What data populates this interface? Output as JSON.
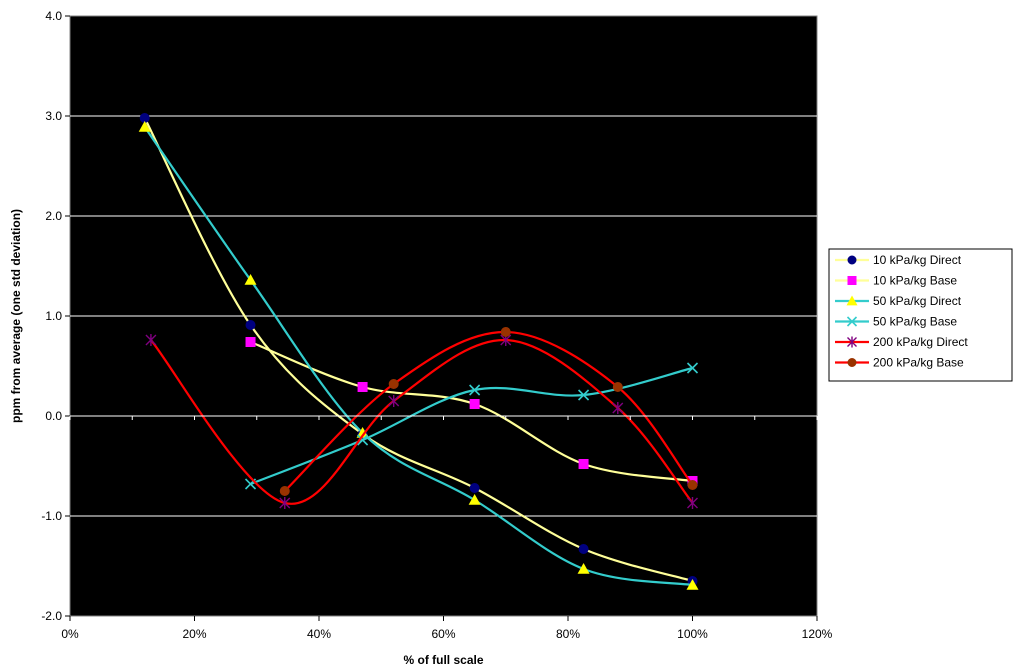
{
  "chart_data": {
    "type": "line",
    "title": "",
    "xlabel": "% of full scale",
    "ylabel": "ppm from average (one std deviation)",
    "xlim": [
      0,
      1.2
    ],
    "ylim": [
      -2.0,
      4.0
    ],
    "x_ticks": [
      {
        "value": 0.0,
        "label": "0%"
      },
      {
        "value": 0.2,
        "label": "20%"
      },
      {
        "value": 0.4,
        "label": "40%"
      },
      {
        "value": 0.6,
        "label": "60%"
      },
      {
        "value": 0.8,
        "label": "80%"
      },
      {
        "value": 1.0,
        "label": "100%"
      },
      {
        "value": 1.2,
        "label": "120%"
      }
    ],
    "y_ticks": [
      {
        "value": -2.0,
        "label": "-2.0"
      },
      {
        "value": -1.0,
        "label": "-1.0"
      },
      {
        "value": 0.0,
        "label": "0.0"
      },
      {
        "value": 1.0,
        "label": "1.0"
      },
      {
        "value": 2.0,
        "label": "2.0"
      },
      {
        "value": 3.0,
        "label": "3.0"
      },
      {
        "value": 4.0,
        "label": "4.0"
      }
    ],
    "grid": "horizontal",
    "plot_background": "#000000",
    "legend_position": "right",
    "series": [
      {
        "name": "10 kPa/kg Direct",
        "line_color": "#FFFF99",
        "marker": "circle",
        "marker_color": "#000080",
        "points": [
          [
            0.12,
            2.98
          ],
          [
            0.29,
            0.91
          ],
          [
            0.47,
            -0.18
          ],
          [
            0.65,
            -0.72
          ],
          [
            0.825,
            -1.33
          ],
          [
            1.0,
            -1.65
          ]
        ]
      },
      {
        "name": "10 kPa/kg Base",
        "line_color": "#FFFF99",
        "marker": "square",
        "marker_color": "#FF00FF",
        "points": [
          [
            0.29,
            0.74
          ],
          [
            0.47,
            0.29
          ],
          [
            0.65,
            0.12
          ],
          [
            0.825,
            -0.48
          ],
          [
            1.0,
            -0.65
          ]
        ]
      },
      {
        "name": "50 kPa/kg Direct",
        "line_color": "#33CCCC",
        "marker": "triangle",
        "marker_color": "#FFFF00",
        "points": [
          [
            0.12,
            2.89
          ],
          [
            0.29,
            1.36
          ],
          [
            0.47,
            -0.17
          ],
          [
            0.65,
            -0.84
          ],
          [
            0.825,
            -1.53
          ],
          [
            1.0,
            -1.69
          ]
        ]
      },
      {
        "name": "50 kPa/kg Base",
        "line_color": "#33CCCC",
        "marker": "x",
        "marker_color": "#33CCCC",
        "points": [
          [
            0.29,
            -0.68
          ],
          [
            0.47,
            -0.24
          ],
          [
            0.65,
            0.26
          ],
          [
            0.825,
            0.21
          ],
          [
            1.0,
            0.48
          ]
        ]
      },
      {
        "name": "200 kPa/kg Direct",
        "line_color": "#FF0000",
        "marker": "star",
        "marker_color": "#800080",
        "points": [
          [
            0.13,
            0.76
          ],
          [
            0.345,
            -0.87
          ],
          [
            0.52,
            0.15
          ],
          [
            0.7,
            0.76
          ],
          [
            0.88,
            0.08
          ],
          [
            1.0,
            -0.87
          ]
        ]
      },
      {
        "name": "200 kPa/kg Base",
        "line_color": "#FF0000",
        "marker": "circle",
        "marker_color": "#993300",
        "points": [
          [
            0.345,
            -0.75
          ],
          [
            0.52,
            0.32
          ],
          [
            0.7,
            0.84
          ],
          [
            0.88,
            0.29
          ],
          [
            1.0,
            -0.69
          ]
        ]
      }
    ]
  }
}
